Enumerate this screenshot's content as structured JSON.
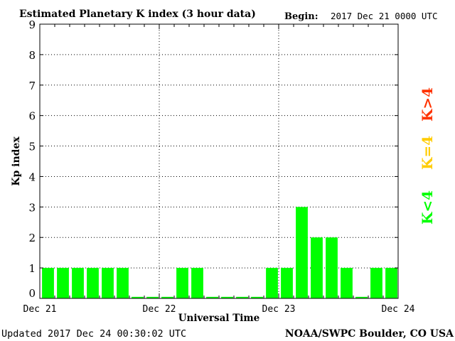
{
  "chart_data": {
    "type": "bar",
    "title": "Estimated Planetary K index (3 hour data)",
    "begin_label": "Begin:",
    "begin_value": "2017 Dec 21 0000 UTC",
    "ylabel": "Kp index",
    "xlabel": "Universal Time",
    "ylim": [
      0,
      9
    ],
    "yticks": [
      "0",
      "1",
      "2",
      "3",
      "4",
      "5",
      "6",
      "7",
      "8",
      "9"
    ],
    "x_tick_labels": [
      "Dec 21",
      "Dec 22",
      "Dec 23",
      "Dec 24"
    ],
    "bins_per_day": 8,
    "values": [
      1,
      1,
      1,
      1,
      1,
      1,
      0.05,
      0.05,
      0.05,
      1,
      1,
      0.05,
      0.05,
      0.05,
      0.05,
      1,
      1,
      3,
      2,
      2,
      1,
      0.05,
      1,
      1
    ],
    "bar_color": "#00ff00",
    "grid": true,
    "legend": [
      {
        "label": "K<4",
        "color": "#00ff00"
      },
      {
        "label": "K=4",
        "color": "#ffcc00"
      },
      {
        "label": "K>4",
        "color": "#ff3300"
      }
    ]
  },
  "footer": {
    "updated": "Updated 2017 Dec 24 00:30:02 UTC",
    "credit": "NOAA/SWPC Boulder, CO USA"
  }
}
